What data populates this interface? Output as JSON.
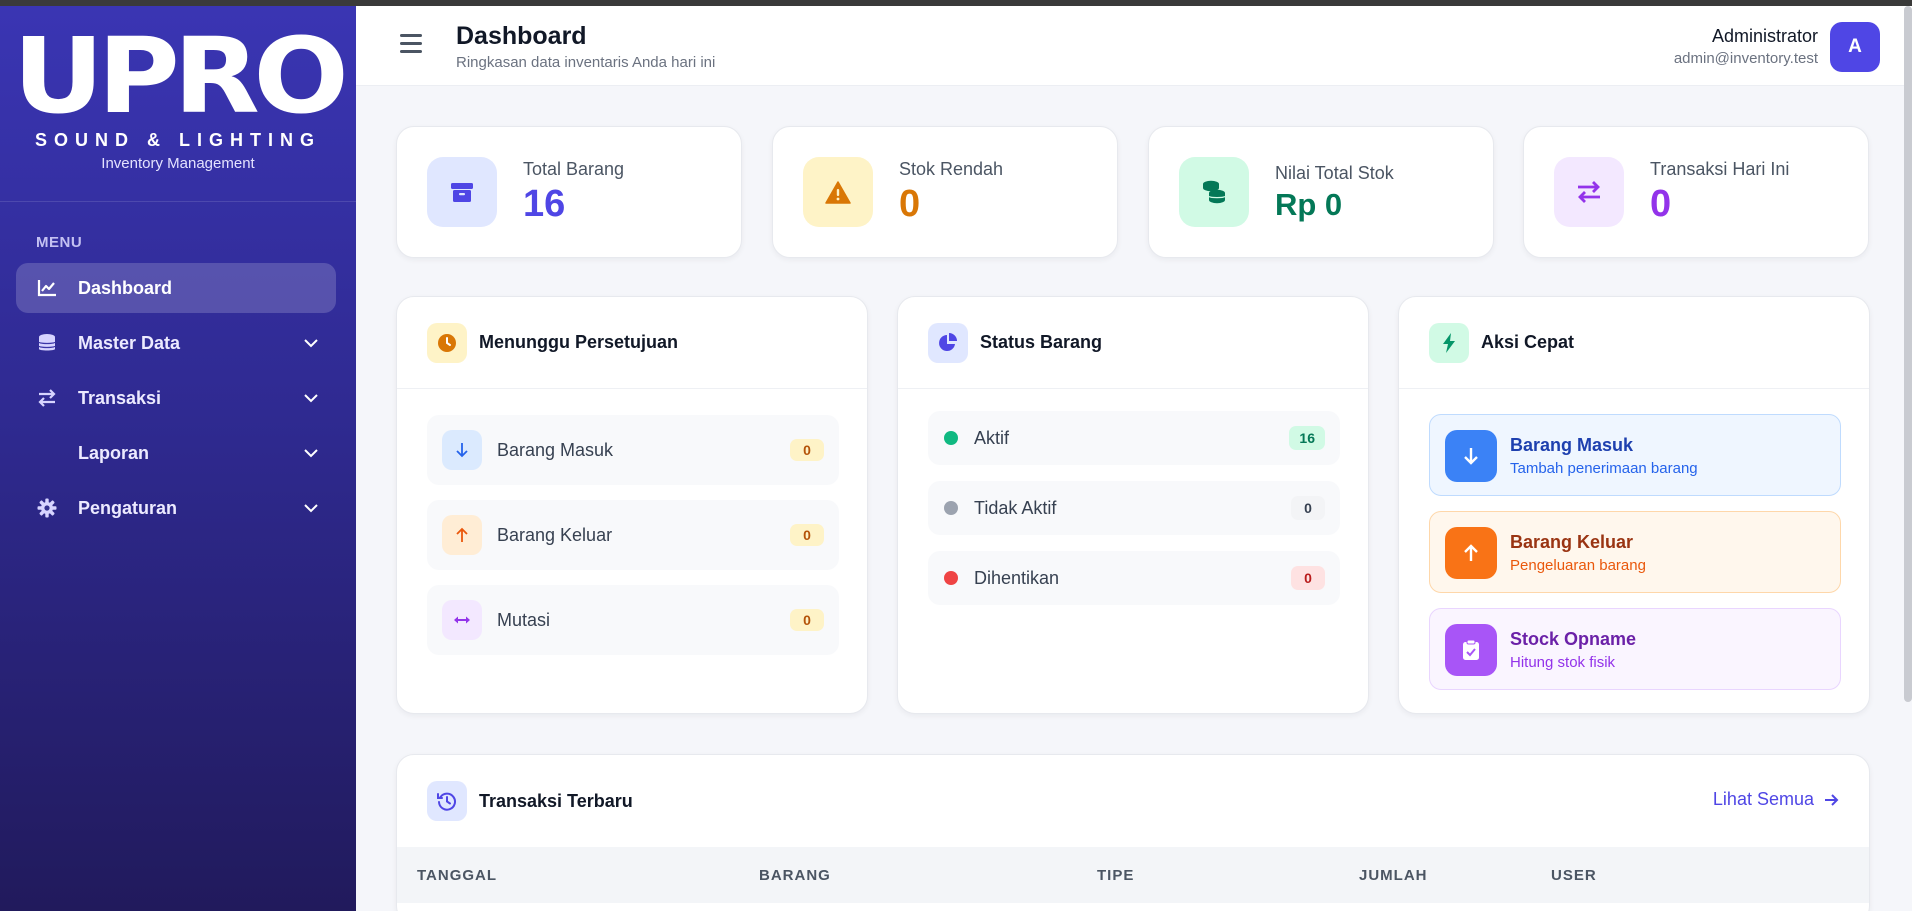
{
  "brand": {
    "logo": "UPRO",
    "subtitle": "SOUND & LIGHTING",
    "tagline": "Inventory Management"
  },
  "sidebar": {
    "section": "MENU",
    "items": [
      {
        "label": "Dashboard",
        "icon": "chart-line-icon",
        "active": true
      },
      {
        "label": "Master Data",
        "icon": "database-icon"
      },
      {
        "label": "Transaksi",
        "icon": "exchange-icon"
      },
      {
        "label": "Laporan",
        "icon": ""
      },
      {
        "label": "Pengaturan",
        "icon": "gear-icon"
      }
    ]
  },
  "header": {
    "title": "Dashboard",
    "subtitle": "Ringkasan data inventaris Anda hari ini",
    "user_name": "Administrator",
    "user_email": "admin@inventory.test",
    "avatar_initial": "A"
  },
  "stats": [
    {
      "label": "Total Barang",
      "value": "16",
      "icon": "box-icon",
      "color": "#4f46e5",
      "bg": "#e0e7ff"
    },
    {
      "label": "Stok Rendah",
      "value": "0",
      "icon": "warning-icon",
      "color": "#d97706",
      "bg": "#fef3c7"
    },
    {
      "label": "Nilai Total Stok",
      "value": "Rp 0",
      "icon": "coins-icon",
      "color": "#047857",
      "bg": "#d1fae5"
    },
    {
      "label": "Transaksi Hari Ini",
      "value": "0",
      "icon": "exchange-icon",
      "color": "#9333ea",
      "bg": "#f3e8ff"
    }
  ],
  "approvals": {
    "title": "Menunggu Persetujuan",
    "items": [
      {
        "label": "Barang Masuk",
        "count": "0"
      },
      {
        "label": "Barang Keluar",
        "count": "0"
      },
      {
        "label": "Mutasi",
        "count": "0"
      }
    ]
  },
  "status": {
    "title": "Status Barang",
    "items": [
      {
        "label": "Aktif",
        "count": "16",
        "color": "#10b981"
      },
      {
        "label": "Tidak Aktif",
        "count": "0",
        "color": "#9ca3af"
      },
      {
        "label": "Dihentikan",
        "count": "0",
        "color": "#ef4444"
      }
    ]
  },
  "quick": {
    "title": "Aksi Cepat",
    "items": [
      {
        "title": "Barang Masuk",
        "desc": "Tambah penerimaan barang"
      },
      {
        "title": "Barang Keluar",
        "desc": "Pengeluaran barang"
      },
      {
        "title": "Stock Opname",
        "desc": "Hitung stok fisik"
      }
    ]
  },
  "recent": {
    "title": "Transaksi Terbaru",
    "see_all": "Lihat Semua",
    "columns": [
      "TANGGAL",
      "BARANG",
      "TIPE",
      "JUMLAH",
      "USER"
    ]
  }
}
